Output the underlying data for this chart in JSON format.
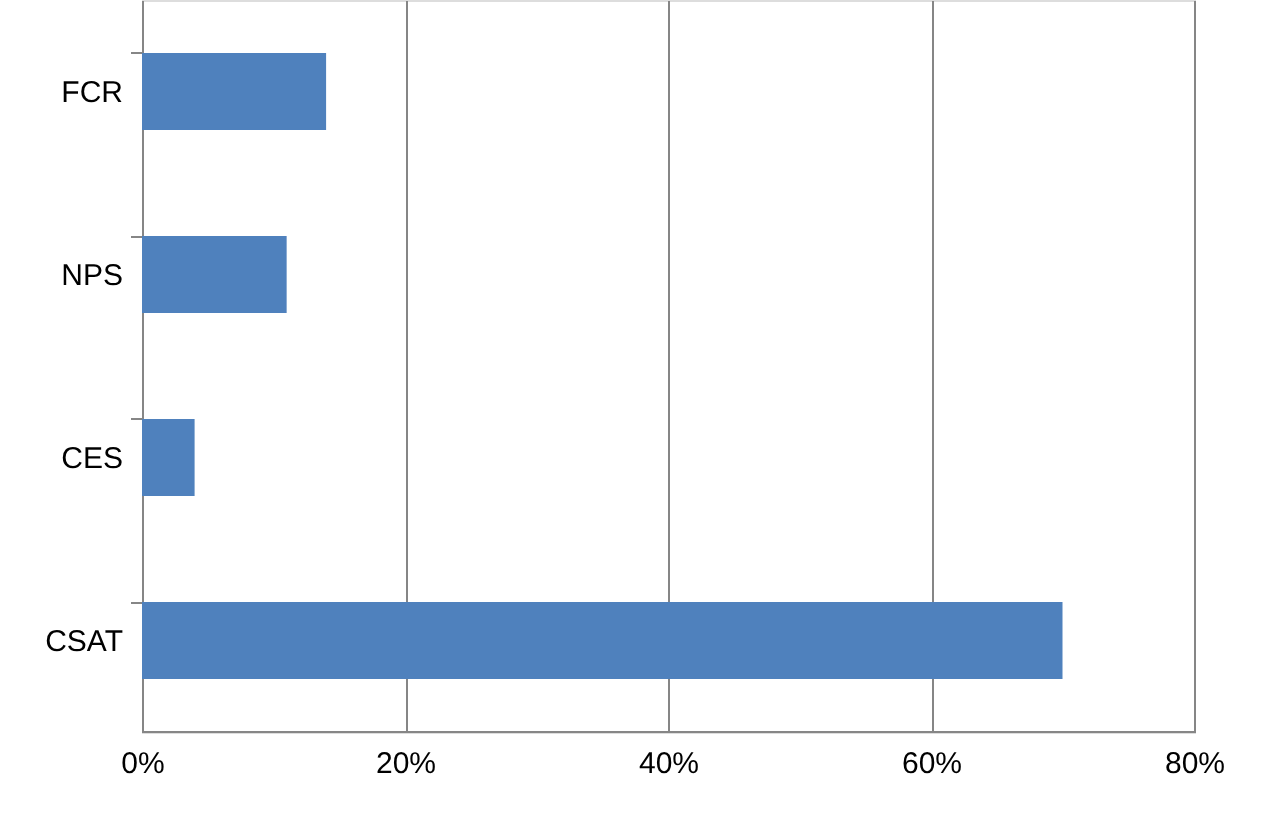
{
  "chart_data": {
    "type": "bar",
    "orientation": "horizontal",
    "categories": [
      "FCR",
      "NPS",
      "CES",
      "CSAT"
    ],
    "values": [
      14,
      11,
      4,
      70
    ],
    "color": "#4f81bd",
    "xlim": [
      0,
      80
    ],
    "xticks": [
      {
        "value": 0,
        "label": "0%"
      },
      {
        "value": 20,
        "label": "20%"
      },
      {
        "value": 40,
        "label": "40%"
      },
      {
        "value": 60,
        "label": "60%"
      },
      {
        "value": 80,
        "label": "80%"
      }
    ],
    "grid": "x"
  }
}
